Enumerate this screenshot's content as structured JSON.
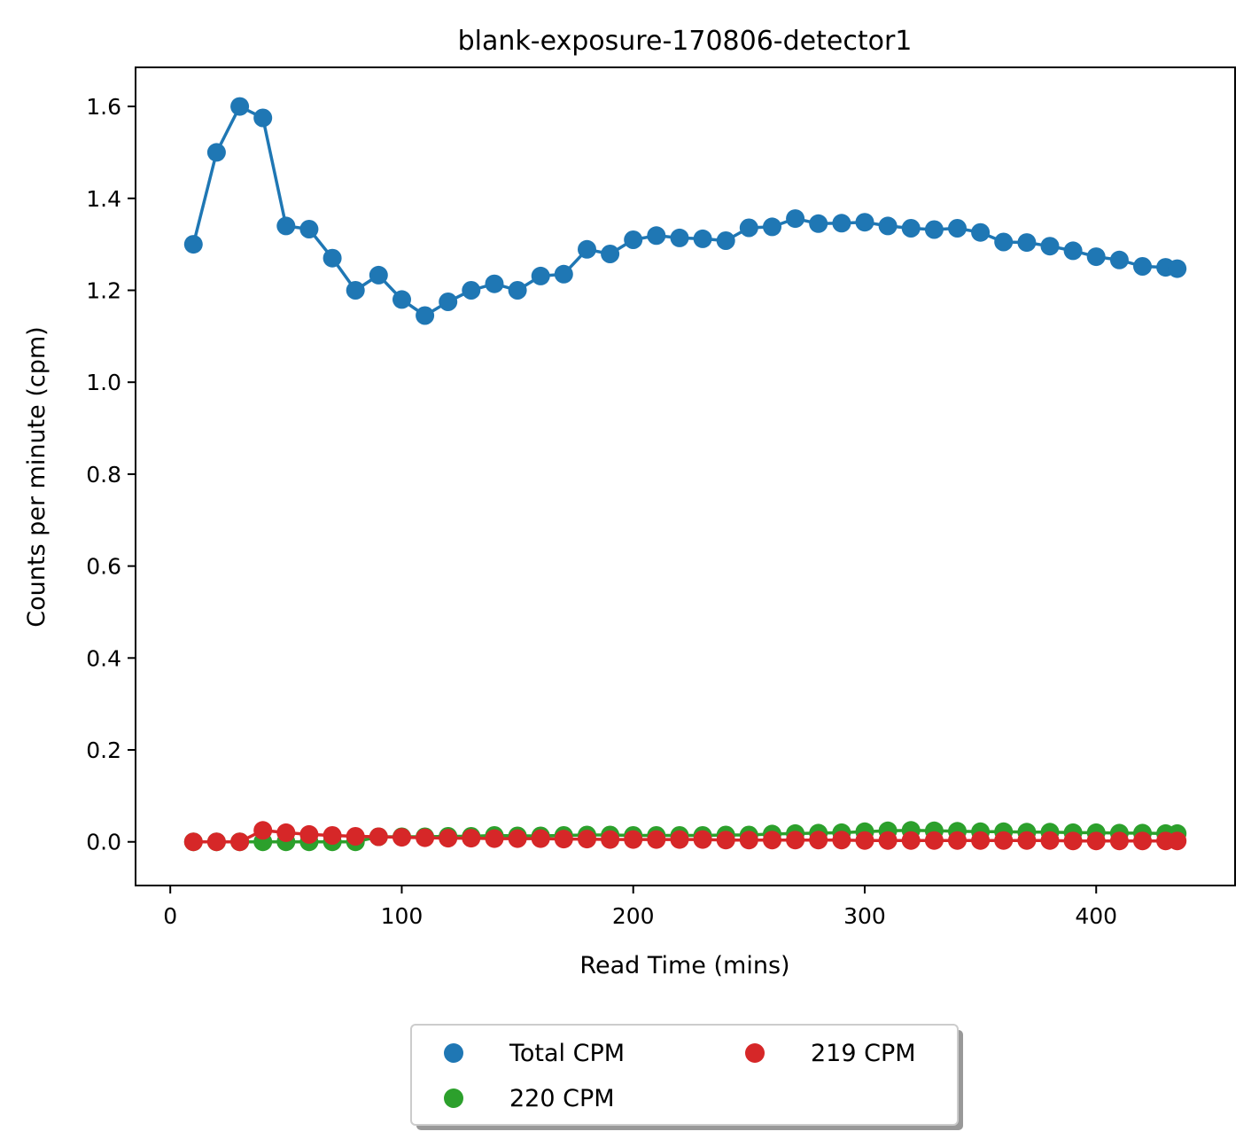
{
  "chart_data": {
    "type": "line",
    "title": "blank-exposure-170806-detector1",
    "xlabel": "Read Time (mins)",
    "ylabel": "Counts per minute (cpm)",
    "xlim": [
      -15,
      460
    ],
    "ylim": [
      -0.095,
      1.685
    ],
    "xticks": [
      0,
      100,
      200,
      300,
      400
    ],
    "yticks": [
      0.0,
      0.2,
      0.4,
      0.6,
      0.8,
      1.0,
      1.2,
      1.4,
      1.6
    ],
    "grid": false,
    "legend_placement": "bottom-center-outside",
    "legend_columns": 2,
    "series": [
      {
        "name": "Total CPM",
        "color": "#1f77b4",
        "x": [
          10,
          20,
          30,
          40,
          50,
          60,
          70,
          80,
          90,
          100,
          110,
          120,
          130,
          140,
          150,
          160,
          170,
          180,
          190,
          200,
          210,
          220,
          230,
          240,
          250,
          260,
          270,
          280,
          290,
          300,
          310,
          320,
          330,
          340,
          350,
          360,
          370,
          380,
          390,
          400,
          410,
          420,
          430,
          435
        ],
        "y": [
          1.3,
          1.5,
          1.6,
          1.575,
          1.34,
          1.333,
          1.27,
          1.2,
          1.233,
          1.18,
          1.145,
          1.175,
          1.2,
          1.214,
          1.2,
          1.231,
          1.235,
          1.289,
          1.279,
          1.31,
          1.319,
          1.314,
          1.312,
          1.308,
          1.336,
          1.338,
          1.356,
          1.345,
          1.346,
          1.348,
          1.34,
          1.335,
          1.332,
          1.335,
          1.326,
          1.305,
          1.304,
          1.296,
          1.286,
          1.273,
          1.266,
          1.252,
          1.25,
          1.247
        ]
      },
      {
        "name": "220 CPM",
        "color": "#2ca02c",
        "x": [
          10,
          20,
          30,
          40,
          50,
          60,
          70,
          80,
          90,
          100,
          110,
          120,
          130,
          140,
          150,
          160,
          170,
          180,
          190,
          200,
          210,
          220,
          230,
          240,
          250,
          260,
          270,
          280,
          290,
          300,
          310,
          320,
          330,
          340,
          350,
          360,
          370,
          380,
          390,
          400,
          410,
          420,
          430,
          435
        ],
        "y": [
          0.0,
          0.0,
          0.0,
          0.0,
          0.0,
          0.0,
          0.0,
          0.0,
          0.011,
          0.011,
          0.011,
          0.012,
          0.012,
          0.014,
          0.013,
          0.013,
          0.014,
          0.015,
          0.015,
          0.014,
          0.014,
          0.014,
          0.014,
          0.015,
          0.015,
          0.017,
          0.018,
          0.019,
          0.02,
          0.022,
          0.024,
          0.025,
          0.024,
          0.023,
          0.022,
          0.022,
          0.021,
          0.021,
          0.02,
          0.02,
          0.019,
          0.019,
          0.018,
          0.018
        ]
      },
      {
        "name": "219 CPM",
        "color": "#d62728",
        "x": [
          10,
          20,
          30,
          40,
          50,
          60,
          70,
          80,
          90,
          100,
          110,
          120,
          130,
          140,
          150,
          160,
          170,
          180,
          190,
          200,
          210,
          220,
          230,
          240,
          250,
          260,
          270,
          280,
          290,
          300,
          310,
          320,
          330,
          340,
          350,
          360,
          370,
          380,
          390,
          400,
          410,
          420,
          430,
          435
        ],
        "y": [
          0.0,
          0.0,
          0.0,
          0.025,
          0.02,
          0.016,
          0.014,
          0.012,
          0.011,
          0.01,
          0.009,
          0.008,
          0.008,
          0.007,
          0.007,
          0.007,
          0.006,
          0.006,
          0.005,
          0.005,
          0.005,
          0.005,
          0.005,
          0.004,
          0.004,
          0.004,
          0.004,
          0.004,
          0.004,
          0.003,
          0.003,
          0.003,
          0.003,
          0.003,
          0.003,
          0.003,
          0.003,
          0.003,
          0.002,
          0.002,
          0.002,
          0.002,
          0.002,
          0.002
        ]
      }
    ],
    "legend_order": [
      "Total CPM",
      "220 CPM",
      "219 CPM"
    ]
  }
}
